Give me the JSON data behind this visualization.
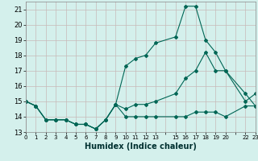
{
  "xlabel": "Humidex (Indice chaleur)",
  "background_color": "#d4f0ec",
  "grid_color_major": "#c8b8b8",
  "grid_color_minor": "#e0d0d0",
  "line_color": "#006655",
  "xlim": [
    0,
    23
  ],
  "ylim": [
    13,
    21.5
  ],
  "yticks": [
    13,
    14,
    15,
    16,
    17,
    18,
    19,
    20,
    21
  ],
  "xtick_labels": [
    "0",
    "1",
    "2",
    "3",
    "4",
    "5",
    "6",
    "7",
    "8",
    "9",
    "10",
    "11",
    "12",
    "13",
    "",
    "15",
    "16",
    "17",
    "18",
    "19",
    "20",
    "",
    "22",
    "23"
  ],
  "series": [
    {
      "x": [
        0,
        1,
        2,
        3,
        4,
        5,
        6,
        7,
        8,
        9,
        10,
        11,
        12,
        13,
        15,
        16,
        17,
        18,
        19,
        20,
        22,
        23
      ],
      "y": [
        15.0,
        14.7,
        13.8,
        13.8,
        13.8,
        13.5,
        13.5,
        13.2,
        13.8,
        14.8,
        17.3,
        17.8,
        18.0,
        18.8,
        19.2,
        21.2,
        21.2,
        19.0,
        18.2,
        17.0,
        15.0,
        15.5
      ]
    },
    {
      "x": [
        0,
        1,
        2,
        3,
        4,
        5,
        6,
        7,
        8,
        9,
        10,
        11,
        12,
        13,
        15,
        16,
        17,
        18,
        19,
        20,
        22,
        23
      ],
      "y": [
        15.0,
        14.7,
        13.8,
        13.8,
        13.8,
        13.5,
        13.5,
        13.2,
        13.8,
        14.8,
        14.5,
        14.8,
        14.8,
        15.0,
        15.5,
        16.5,
        17.0,
        18.2,
        17.0,
        17.0,
        15.5,
        14.7
      ]
    },
    {
      "x": [
        0,
        1,
        2,
        3,
        4,
        5,
        6,
        7,
        8,
        9,
        10,
        11,
        12,
        13,
        15,
        16,
        17,
        18,
        19,
        20,
        22,
        23
      ],
      "y": [
        15.0,
        14.7,
        13.8,
        13.8,
        13.8,
        13.5,
        13.5,
        13.2,
        13.8,
        14.8,
        14.0,
        14.0,
        14.0,
        14.0,
        14.0,
        14.0,
        14.3,
        14.3,
        14.3,
        14.0,
        14.7,
        14.7
      ]
    }
  ]
}
